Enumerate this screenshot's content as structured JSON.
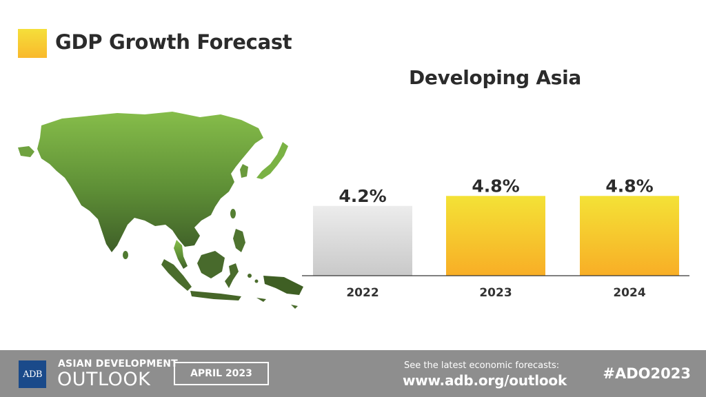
{
  "header": {
    "title": "GDP Growth Forecast",
    "swatch_color": "#f7c92f"
  },
  "chart_data": {
    "type": "bar",
    "title": "Developing Asia",
    "categories": [
      "2022",
      "2023",
      "2024"
    ],
    "values": [
      4.2,
      4.8,
      4.8
    ],
    "value_labels": [
      "4.2%",
      "4.8%",
      "4.8%"
    ],
    "bar_colors": [
      "#d8d8d8",
      "#f6c12e",
      "#f6c12e"
    ],
    "ylim": [
      0,
      5.6
    ],
    "grid": false,
    "legend": "none",
    "xlabel": "",
    "ylabel": ""
  },
  "map": {
    "icon": "asia-map-icon",
    "color": "#6a9a3c"
  },
  "footer": {
    "logo_text": "ADB",
    "publication_top": "ASIAN DEVELOPMENT",
    "publication_bottom": "OUTLOOK",
    "date_label": "APRIL 2023",
    "cta_text": "See the latest economic forecasts:",
    "url": "www.adb.org/outlook",
    "hashtag": "#ADO2023"
  }
}
